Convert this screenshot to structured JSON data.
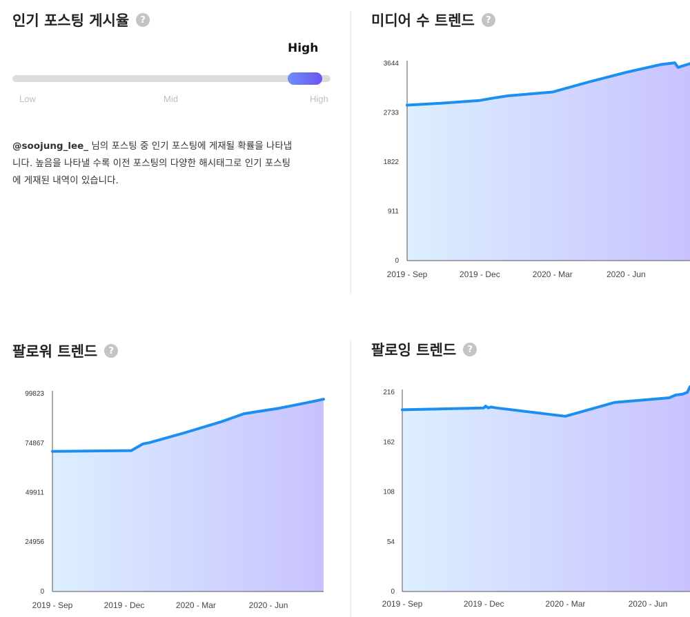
{
  "colors": {
    "line": "#1a8ff0",
    "fill_start": "#dcefff",
    "fill_end": "#c8c2ff",
    "axis": "#555555"
  },
  "popular_rate": {
    "title": "인기 포스팅 게시율",
    "help_icon": "?",
    "value_label": "High",
    "level": 1.0,
    "ticks": [
      "Low",
      "Mid",
      "High"
    ],
    "username": "@soojung_lee_",
    "description_line1": " 님의 포스팅 중 인기 포스팅에 게재될 확률을 나타냅",
    "description_line2": "니다. 높음을 나타낼 수록 이전 포스팅의 다양한 해시태그로 인기 포스팅",
    "description_line3": "에 게재된 내역이 있습니다."
  },
  "chart_data": [
    {
      "id": "media",
      "type": "area",
      "title": "미디어 수 트렌드",
      "x_tick_labels": [
        "2019 - Sep",
        "2019 - Dec",
        "2020 - Mar",
        "2020 - Jun"
      ],
      "y_ticks": [
        0,
        911,
        1822,
        2733,
        3644
      ],
      "ylim": [
        0,
        3644
      ],
      "x": [
        "2019-09-01",
        "2019-10-15",
        "2019-12-01",
        "2019-12-20",
        "2019-12-25",
        "2020-01-05",
        "2020-03-01",
        "2020-04-15",
        "2020-06-01",
        "2020-07-15",
        "2020-08-01",
        "2020-08-05",
        "2020-08-20"
      ],
      "values": [
        2873,
        2910,
        2960,
        3010,
        3020,
        3045,
        3115,
        3300,
        3480,
        3625,
        3655,
        3570,
        3640
      ]
    },
    {
      "id": "followers",
      "type": "area",
      "title": "팔로워 트렌드",
      "x_tick_labels": [
        "2019 - Sep",
        "2019 - Dec",
        "2020 - Mar",
        "2020 - Jun"
      ],
      "y_ticks": [
        0,
        24956,
        49911,
        74867,
        99823
      ],
      "ylim": [
        0,
        99823
      ],
      "x": [
        "2019-09-01",
        "2019-12-10",
        "2019-12-25",
        "2020-01-01",
        "2020-02-15",
        "2020-04-01",
        "2020-05-01",
        "2020-06-15",
        "2020-07-25",
        "2020-08-10"
      ],
      "values": [
        70700,
        71100,
        74500,
        75000,
        80000,
        85500,
        89700,
        92500,
        95700,
        97000
      ]
    },
    {
      "id": "following",
      "type": "area",
      "title": "팔로잉 트렌드",
      "x_tick_labels": [
        "2019 - Sep",
        "2019 - Dec",
        "2020 - Mar",
        "2020 - Jun"
      ],
      "y_ticks": [
        0,
        54,
        108,
        162,
        216
      ],
      "ylim": [
        0,
        216
      ],
      "x": [
        "2019-09-01",
        "2019-12-01",
        "2019-12-03",
        "2019-12-06",
        "2019-12-09",
        "2019-12-15",
        "2020-03-01",
        "2020-04-25",
        "2020-06-25",
        "2020-07-02",
        "2020-07-10",
        "2020-07-15",
        "2020-07-18"
      ],
      "values": [
        197,
        199,
        201,
        199,
        200,
        199,
        190,
        205,
        210,
        213,
        214,
        216,
        222
      ]
    }
  ]
}
